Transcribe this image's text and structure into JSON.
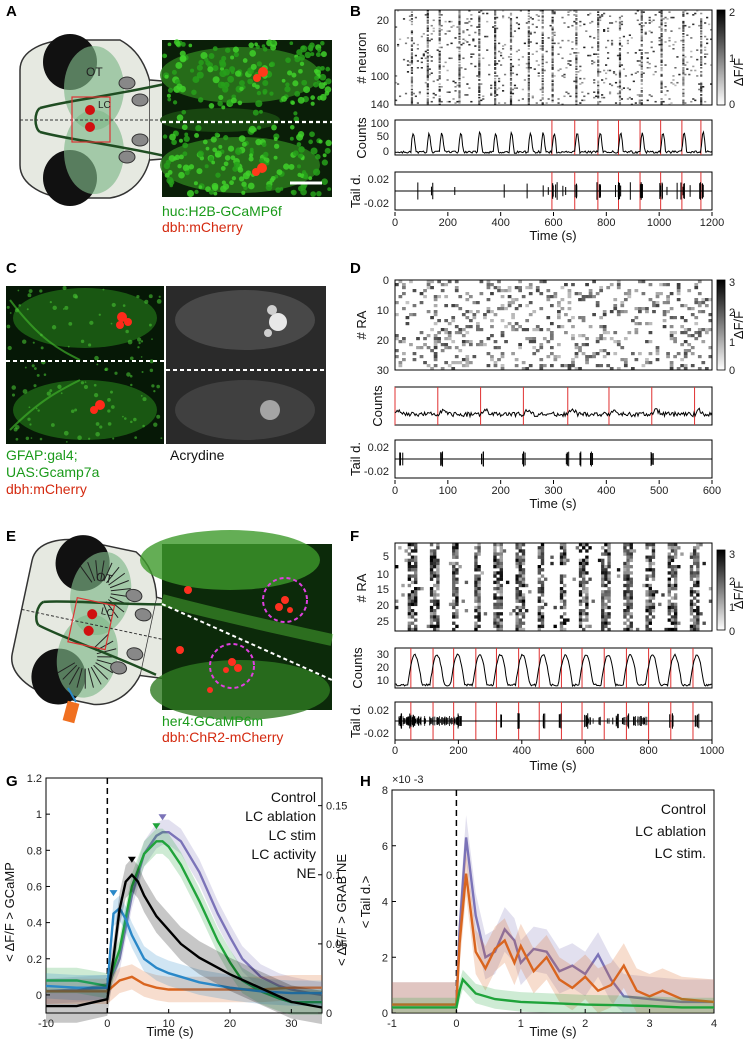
{
  "panels": {
    "A": {
      "label": "A",
      "ot_label": "OT",
      "lc_label": "LC",
      "caption_green": "huc:H2B-GCaMP6f",
      "caption_red": "dbh:mCherry"
    },
    "B": {
      "label": "B",
      "raster_ylabel": "# neuron",
      "raster_yticks": [
        "20",
        "60",
        "100",
        "140"
      ],
      "colorbar_ticks": [
        "2",
        "1",
        "0"
      ],
      "colorbar_label": "ΔF/F",
      "counts_ylabel": "Counts",
      "counts_yticks": [
        "100",
        "50",
        "0"
      ],
      "tail_ylabel": "Tail d.",
      "tail_yticks": [
        "0.02",
        "-0.02"
      ],
      "xticks": [
        "0",
        "200",
        "400",
        "600",
        "800",
        "1000",
        "1200"
      ],
      "xlabel": "Time (s)"
    },
    "C": {
      "label": "C",
      "caption_green_1": "GFAP:gal4;",
      "caption_green_2": "UAS:Gcamp7a",
      "caption_red": "dbh:mCherry",
      "caption_gray": "Acrydine"
    },
    "D": {
      "label": "D",
      "raster_ylabel": "# RA",
      "raster_yticks": [
        "0",
        "10",
        "20",
        "30"
      ],
      "colorbar_ticks": [
        "3",
        "2",
        "1",
        "0"
      ],
      "colorbar_label": "ΔF/F",
      "counts_ylabel": "Counts",
      "tail_ylabel": "Tail d.",
      "tail_yticks": [
        "0.02",
        "-0.02"
      ],
      "xticks": [
        "0",
        "100",
        "200",
        "300",
        "400",
        "500",
        "600"
      ],
      "xlabel": "Time (s)"
    },
    "E": {
      "label": "E",
      "ot_label": "OT",
      "lc_label": "LC",
      "caption_green": "her4:GCaMP6m",
      "caption_red": "dbh:ChR2-mCherry"
    },
    "F": {
      "label": "F",
      "raster_ylabel": "# RA",
      "raster_yticks": [
        "5",
        "10",
        "15",
        "20",
        "25"
      ],
      "colorbar_ticks": [
        "3",
        "2",
        "1",
        "0"
      ],
      "colorbar_label": "ΔF/F",
      "counts_ylabel": "Counts",
      "counts_yticks": [
        "30",
        "20",
        "10"
      ],
      "tail_ylabel": "Tail d.",
      "tail_yticks": [
        "0.02",
        "-0.02"
      ],
      "xticks": [
        "0",
        "200",
        "400",
        "600",
        "800",
        "1000"
      ],
      "xlabel": "Time (s)"
    },
    "G": {
      "label": "G",
      "ylabel_left": "< ΔF/F > GCaMP",
      "ylabel_right": "< ΔF/F > GRAB NE",
      "xlabel": "Time (s)",
      "yticks_left": [
        "0",
        "0.2",
        "0.4",
        "0.6",
        "0.8",
        "1",
        "1.2"
      ],
      "yticks_right": [
        "0",
        "0.05",
        "0.1",
        "0.15"
      ],
      "xticks": [
        "-10",
        "0",
        "10",
        "20",
        "30"
      ]
    },
    "H": {
      "label": "H",
      "ylabel": "< Tail d.>",
      "multiplier": "×10 -3",
      "xlabel": "Time (s)",
      "yticks": [
        "0",
        "2",
        "4",
        "6",
        "8"
      ],
      "xticks": [
        "-1",
        "0",
        "1",
        "2",
        "3",
        "4"
      ]
    }
  },
  "colors": {
    "control": "#7b73b8",
    "ablation": "#d9651f",
    "stim": "#1fa33a",
    "activity": "#2a88c8",
    "ne": "#000000",
    "stim_red": "#e03030"
  },
  "chart_data": [
    {
      "type": "line",
      "panel": "G",
      "xlabel": "Time (s)",
      "ylabel": "< ΔF/F > GCaMP",
      "ylabel_right": "< ΔF/F > GRAB NE",
      "xlim": [
        -10,
        35
      ],
      "ylim": [
        -0.1,
        1.2
      ],
      "ylim_right": [
        0,
        0.17
      ],
      "legend_position": "top-right",
      "series": [
        {
          "name": "Control",
          "color": "#7b73b8",
          "axis": "left",
          "x": [
            -10,
            -5,
            0,
            2,
            4,
            6,
            8,
            9,
            10,
            12,
            15,
            18,
            20,
            22,
            25,
            28,
            30,
            33,
            35
          ],
          "y": [
            0.02,
            0.03,
            0.04,
            0.2,
            0.55,
            0.78,
            0.88,
            0.9,
            0.9,
            0.85,
            0.68,
            0.45,
            0.32,
            0.2,
            0.1,
            0.05,
            0.03,
            0.01,
            0.0
          ]
        },
        {
          "name": "LC ablation",
          "color": "#d9651f",
          "axis": "left",
          "x": [
            -10,
            -5,
            0,
            2,
            4,
            6,
            8,
            10,
            15,
            20,
            25,
            30,
            35
          ],
          "y": [
            0.02,
            0.02,
            0.02,
            0.08,
            0.1,
            0.06,
            0.04,
            0.03,
            0.03,
            0.03,
            0.03,
            0.04,
            0.04
          ]
        },
        {
          "name": "LC stim",
          "color": "#1fa33a",
          "axis": "left",
          "x": [
            -10,
            -5,
            0,
            2,
            4,
            6,
            8,
            9,
            10,
            12,
            15,
            18,
            20,
            22,
            25,
            28,
            30,
            33,
            35
          ],
          "y": [
            0.08,
            0.08,
            0.05,
            0.25,
            0.6,
            0.78,
            0.85,
            0.85,
            0.82,
            0.72,
            0.52,
            0.3,
            0.18,
            0.08,
            0.02,
            -0.02,
            -0.04,
            -0.04,
            -0.04
          ]
        },
        {
          "name": "LC activity",
          "color": "#2a88c8",
          "axis": "left",
          "x": [
            -10,
            -5,
            0,
            0.5,
            1,
            2,
            3,
            4,
            6,
            8,
            10,
            12,
            15,
            20,
            25,
            30,
            35
          ],
          "y": [
            0.05,
            0.04,
            0.04,
            0.25,
            0.45,
            0.48,
            0.42,
            0.33,
            0.2,
            0.15,
            0.12,
            0.1,
            0.07,
            0.04,
            0.02,
            0.01,
            0.01
          ]
        },
        {
          "name": "NE",
          "color": "#000000",
          "axis": "right",
          "x": [
            -10,
            -5,
            0,
            1,
            2,
            3,
            4,
            5,
            6,
            8,
            10,
            12,
            15,
            20,
            25,
            30,
            35
          ],
          "y": [
            0.005,
            0.005,
            0.01,
            0.04,
            0.075,
            0.095,
            0.1,
            0.095,
            0.085,
            0.07,
            0.06,
            0.05,
            0.04,
            0.028,
            0.018,
            0.008,
            0.004
          ]
        }
      ]
    },
    {
      "type": "line",
      "panel": "H",
      "xlabel": "Time (s)",
      "ylabel": "< Tail d.>",
      "xlim": [
        -1,
        4
      ],
      "ylim": [
        0,
        8
      ],
      "legend_position": "top-right",
      "series": [
        {
          "name": "Control",
          "color": "#7b73b8",
          "x": [
            -1,
            -0.5,
            0,
            0.05,
            0.15,
            0.3,
            0.45,
            0.6,
            0.75,
            0.9,
            1.0,
            1.2,
            1.4,
            1.6,
            1.8,
            2.0,
            2.2,
            2.4,
            2.6,
            3.0,
            3.5,
            4.0
          ],
          "y": [
            0.3,
            0.3,
            0.3,
            3.0,
            6.3,
            3.5,
            2.0,
            2.2,
            3.0,
            2.6,
            1.8,
            2.3,
            2.2,
            1.5,
            1.7,
            1.4,
            2.1,
            1.2,
            0.6,
            0.5,
            0.4,
            0.4
          ]
        },
        {
          "name": "LC ablation",
          "color": "#d9651f",
          "x": [
            -1,
            -0.5,
            0,
            0.05,
            0.15,
            0.3,
            0.45,
            0.6,
            0.75,
            0.9,
            1.0,
            1.2,
            1.4,
            1.6,
            1.8,
            2.0,
            2.2,
            2.4,
            2.6,
            2.8,
            3.0,
            3.2,
            3.5,
            4.0
          ],
          "y": [
            0.3,
            0.3,
            0.3,
            2.5,
            5.0,
            2.2,
            1.6,
            2.3,
            2.6,
            1.8,
            2.4,
            1.5,
            2.0,
            1.2,
            0.9,
            1.3,
            0.8,
            1.0,
            1.7,
            0.8,
            0.6,
            0.8,
            0.5,
            0.4
          ]
        },
        {
          "name": "LC stim.",
          "color": "#1fa33a",
          "x": [
            -1,
            -0.5,
            0,
            0.05,
            0.1,
            0.3,
            0.6,
            1.0,
            1.5,
            2.0,
            2.5,
            3.0,
            3.5,
            4.0
          ],
          "y": [
            0.2,
            0.2,
            0.2,
            0.8,
            1.2,
            0.7,
            0.5,
            0.4,
            0.35,
            0.3,
            0.28,
            0.25,
            0.2,
            0.2
          ]
        }
      ]
    }
  ]
}
